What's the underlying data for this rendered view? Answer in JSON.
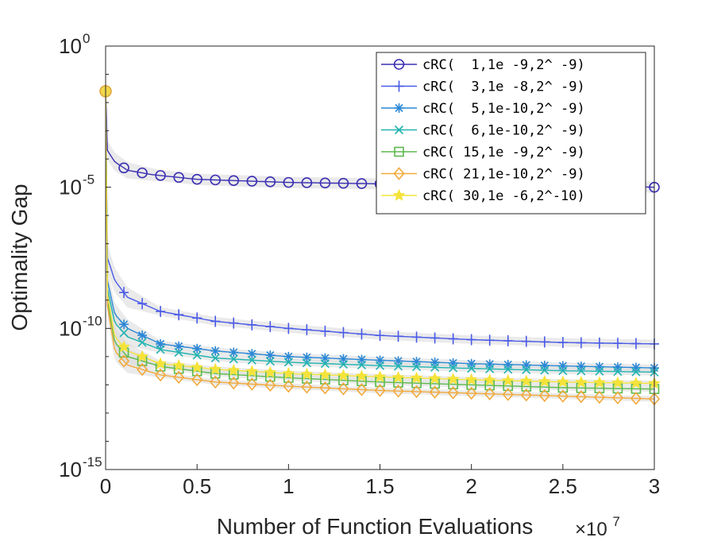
{
  "chart_data": {
    "type": "line",
    "title": "",
    "xlabel": "Number of Function Evaluations",
    "ylabel": "Optimality Gap",
    "x_multiplier_label": {
      "base": "×10",
      "exp": "7"
    },
    "xlim": [
      0,
      3
    ],
    "ylim_log10": [
      -15,
      0
    ],
    "yscale": "log",
    "x_ticks": [
      {
        "value": 0,
        "label": "0"
      },
      {
        "value": 0.5,
        "label": "0.5"
      },
      {
        "value": 1,
        "label": "1"
      },
      {
        "value": 1.5,
        "label": "1.5"
      },
      {
        "value": 2,
        "label": "2"
      },
      {
        "value": 2.5,
        "label": "2.5"
      },
      {
        "value": 3,
        "label": "3"
      }
    ],
    "y_ticks": [
      {
        "log": 0,
        "base": "10",
        "exp": "0"
      },
      {
        "log": -5,
        "base": "10",
        "exp": "-5"
      },
      {
        "log": -10,
        "base": "10",
        "exp": "-10"
      },
      {
        "log": -15,
        "base": "10",
        "exp": "-15"
      }
    ],
    "grid": false,
    "legend_position": "top-right",
    "series": [
      {
        "name": "cRC(  1,1e -9,2^ -9)",
        "color": "#3a2fb3",
        "marker": "circle",
        "points_log10": [
          [
            0,
            -1.6
          ],
          [
            0.01,
            -3.7
          ],
          [
            0.05,
            -4.1
          ],
          [
            0.12,
            -4.4
          ],
          [
            0.25,
            -4.55
          ],
          [
            0.5,
            -4.72
          ],
          [
            1.0,
            -4.83
          ],
          [
            1.5,
            -4.88
          ],
          [
            2.0,
            -4.9
          ],
          [
            2.5,
            -4.92
          ],
          [
            3.0,
            -5.0
          ]
        ],
        "band_log10": [
          0.35,
          0.2
        ]
      },
      {
        "name": "cRC(  3,1e -8,2^ -9)",
        "color": "#4a5ae8",
        "marker": "plus",
        "points_log10": [
          [
            0,
            -1.6
          ],
          [
            0.01,
            -7.5
          ],
          [
            0.05,
            -8.3
          ],
          [
            0.12,
            -8.9
          ],
          [
            0.3,
            -9.4
          ],
          [
            0.6,
            -9.75
          ],
          [
            1.0,
            -10.0
          ],
          [
            1.5,
            -10.25
          ],
          [
            2.0,
            -10.4
          ],
          [
            2.5,
            -10.5
          ],
          [
            3.0,
            -10.55
          ]
        ],
        "band_log10": [
          0.5,
          0.15
        ]
      },
      {
        "name": "cRC(  5,1e-10,2^ -9)",
        "color": "#2c88d6",
        "marker": "asterisk",
        "points_log10": [
          [
            0,
            -1.6
          ],
          [
            0.01,
            -8.3
          ],
          [
            0.05,
            -9.5
          ],
          [
            0.12,
            -10.0
          ],
          [
            0.3,
            -10.55
          ],
          [
            0.6,
            -10.8
          ],
          [
            1.0,
            -11.0
          ],
          [
            1.5,
            -11.13
          ],
          [
            2.0,
            -11.25
          ],
          [
            2.5,
            -11.33
          ],
          [
            3.0,
            -11.4
          ]
        ],
        "band_log10": [
          0.45,
          0.12
        ]
      },
      {
        "name": "cRC(  6,1e-10,2^ -9)",
        "color": "#21b3b0",
        "marker": "x",
        "points_log10": [
          [
            0,
            -1.6
          ],
          [
            0.01,
            -8.6
          ],
          [
            0.05,
            -9.8
          ],
          [
            0.12,
            -10.3
          ],
          [
            0.3,
            -10.75
          ],
          [
            0.6,
            -11.05
          ],
          [
            1.0,
            -11.2
          ],
          [
            1.5,
            -11.32
          ],
          [
            2.0,
            -11.42
          ],
          [
            2.5,
            -11.5
          ],
          [
            3.0,
            -11.55
          ]
        ],
        "band_log10": [
          0.45,
          0.12
        ]
      },
      {
        "name": "cRC( 15,1e -9,2^ -9)",
        "color": "#5cb94d",
        "marker": "square",
        "points_log10": [
          [
            0,
            -1.6
          ],
          [
            0.01,
            -9.0
          ],
          [
            0.05,
            -10.5
          ],
          [
            0.12,
            -11.0
          ],
          [
            0.3,
            -11.35
          ],
          [
            0.6,
            -11.6
          ],
          [
            1.0,
            -11.75
          ],
          [
            1.5,
            -11.9
          ],
          [
            2.0,
            -12.0
          ],
          [
            2.5,
            -12.1
          ],
          [
            3.0,
            -12.15
          ]
        ],
        "band_log10": [
          0.4,
          0.1
        ]
      },
      {
        "name": "cRC( 21,1e-10,2^ -9)",
        "color": "#f2a93c",
        "marker": "diamond",
        "points_log10": [
          [
            0,
            -1.6
          ],
          [
            0.01,
            -9.2
          ],
          [
            0.05,
            -10.8
          ],
          [
            0.12,
            -11.3
          ],
          [
            0.3,
            -11.65
          ],
          [
            0.6,
            -11.9
          ],
          [
            1.0,
            -12.05
          ],
          [
            1.5,
            -12.2
          ],
          [
            2.0,
            -12.3
          ],
          [
            2.5,
            -12.4
          ],
          [
            3.0,
            -12.5
          ]
        ],
        "band_log10": [
          0.4,
          0.1
        ]
      },
      {
        "name": "cRC( 30,1e -6,2^-10)",
        "color": "#f5e33a",
        "marker": "star",
        "points_log10": [
          [
            0,
            -1.6
          ],
          [
            0.01,
            -8.8
          ],
          [
            0.05,
            -10.3
          ],
          [
            0.12,
            -10.8
          ],
          [
            0.3,
            -11.25
          ],
          [
            0.6,
            -11.45
          ],
          [
            1.0,
            -11.6
          ],
          [
            1.5,
            -11.72
          ],
          [
            2.0,
            -11.82
          ],
          [
            2.5,
            -11.9
          ],
          [
            3.0,
            -11.95
          ]
        ],
        "band_log10": [
          0.4,
          0.1
        ]
      }
    ]
  }
}
